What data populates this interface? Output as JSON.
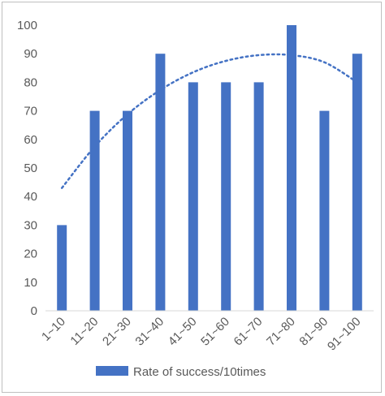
{
  "chart_data": {
    "type": "bar",
    "categories": [
      "1~10",
      "11~20",
      "21~30",
      "31~40",
      "41~50",
      "51~60",
      "61~70",
      "71~80",
      "81~90",
      "91~100"
    ],
    "series": [
      {
        "name": "Rate of success/10times",
        "values": [
          30,
          70,
          70,
          90,
          80,
          80,
          80,
          100,
          70,
          90
        ],
        "color": "#4472c4"
      }
    ],
    "trendline": {
      "type": "polynomial",
      "style": "dotted",
      "color": "#4472c4",
      "values": [
        43,
        57.5,
        68.8,
        77.3,
        83.5,
        87.5,
        89.5,
        89.5,
        87,
        80
      ]
    },
    "yticks": [
      "0",
      "10",
      "20",
      "30",
      "40",
      "50",
      "60",
      "70",
      "80",
      "90",
      "100"
    ],
    "ylim": [
      0,
      100
    ],
    "grid": false,
    "legend_position": "bottom",
    "title": "",
    "xlabel": "",
    "ylabel": ""
  }
}
